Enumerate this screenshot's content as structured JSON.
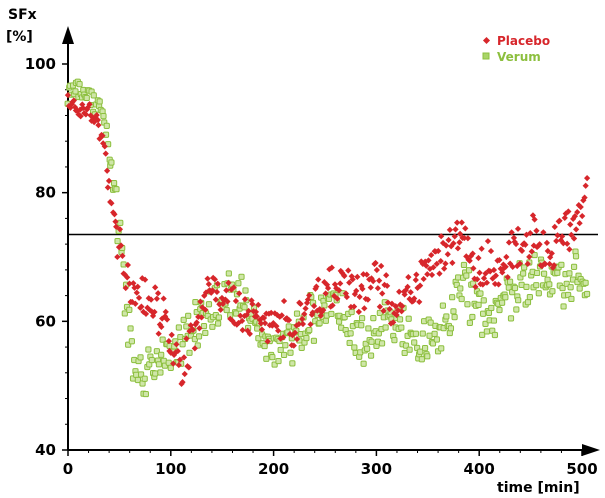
{
  "chart_data": {
    "type": "scatter",
    "title": "",
    "ylabel_line1": "SFx",
    "ylabel_line2": "[%]",
    "xlabel": "time [min]",
    "xlim": [
      0,
      510
    ],
    "ylim": [
      40,
      100
    ],
    "x_ticks": [
      0,
      100,
      200,
      300,
      400,
      500
    ],
    "y_ticks": [
      40,
      60,
      80,
      100
    ],
    "grid": false,
    "legend_position": "top-right",
    "reference_line_y": 73.5,
    "colors": {
      "placebo": "#d7262b",
      "verum": "#8cbf3e",
      "axis": "#000000"
    },
    "series": [
      {
        "name": "Placebo",
        "marker": "diamond",
        "anchors": [
          [
            0,
            94
          ],
          [
            15,
            93
          ],
          [
            25,
            92
          ],
          [
            35,
            88
          ],
          [
            42,
            78
          ],
          [
            50,
            72
          ],
          [
            60,
            66
          ],
          [
            70,
            65
          ],
          [
            80,
            63
          ],
          [
            90,
            62
          ],
          [
            100,
            56
          ],
          [
            110,
            53
          ],
          [
            120,
            57
          ],
          [
            130,
            62
          ],
          [
            140,
            66
          ],
          [
            150,
            63
          ],
          [
            160,
            62
          ],
          [
            170,
            61
          ],
          [
            180,
            61
          ],
          [
            190,
            60
          ],
          [
            200,
            59
          ],
          [
            210,
            60
          ],
          [
            220,
            58
          ],
          [
            230,
            62
          ],
          [
            240,
            63
          ],
          [
            250,
            64
          ],
          [
            260,
            66
          ],
          [
            270,
            66
          ],
          [
            280,
            64
          ],
          [
            290,
            65
          ],
          [
            300,
            67
          ],
          [
            310,
            64
          ],
          [
            320,
            63
          ],
          [
            330,
            64
          ],
          [
            340,
            65
          ],
          [
            350,
            68
          ],
          [
            360,
            69
          ],
          [
            370,
            70
          ],
          [
            380,
            74
          ],
          [
            390,
            70
          ],
          [
            400,
            68
          ],
          [
            410,
            69
          ],
          [
            420,
            68
          ],
          [
            430,
            70
          ],
          [
            440,
            72
          ],
          [
            450,
            73
          ],
          [
            460,
            72
          ],
          [
            470,
            71
          ],
          [
            480,
            74
          ],
          [
            490,
            74
          ],
          [
            500,
            78
          ],
          [
            505,
            82
          ]
        ],
        "spread": 3
      },
      {
        "name": "Verum",
        "marker": "square",
        "anchors": [
          [
            0,
            95
          ],
          [
            10,
            96
          ],
          [
            20,
            95
          ],
          [
            30,
            93
          ],
          [
            38,
            90
          ],
          [
            45,
            80
          ],
          [
            50,
            74
          ],
          [
            55,
            65
          ],
          [
            60,
            58
          ],
          [
            65,
            53
          ],
          [
            70,
            52
          ],
          [
            80,
            53
          ],
          [
            90,
            55
          ],
          [
            100,
            55
          ],
          [
            110,
            57
          ],
          [
            120,
            59
          ],
          [
            130,
            60
          ],
          [
            140,
            62
          ],
          [
            150,
            64
          ],
          [
            160,
            64
          ],
          [
            170,
            63
          ],
          [
            180,
            60
          ],
          [
            190,
            57
          ],
          [
            200,
            56
          ],
          [
            210,
            55
          ],
          [
            220,
            58
          ],
          [
            230,
            59
          ],
          [
            240,
            61
          ],
          [
            250,
            63
          ],
          [
            260,
            62
          ],
          [
            270,
            60
          ],
          [
            280,
            58
          ],
          [
            290,
            57
          ],
          [
            300,
            58
          ],
          [
            310,
            60
          ],
          [
            320,
            59
          ],
          [
            330,
            58
          ],
          [
            340,
            57
          ],
          [
            350,
            58
          ],
          [
            360,
            58
          ],
          [
            370,
            59
          ],
          [
            380,
            66
          ],
          [
            390,
            64
          ],
          [
            400,
            62
          ],
          [
            410,
            60
          ],
          [
            420,
            62
          ],
          [
            430,
            63
          ],
          [
            440,
            66
          ],
          [
            450,
            67
          ],
          [
            460,
            68
          ],
          [
            470,
            67
          ],
          [
            480,
            66
          ],
          [
            490,
            67
          ],
          [
            500,
            66
          ],
          [
            505,
            62
          ]
        ],
        "spread": 3.3
      }
    ]
  }
}
